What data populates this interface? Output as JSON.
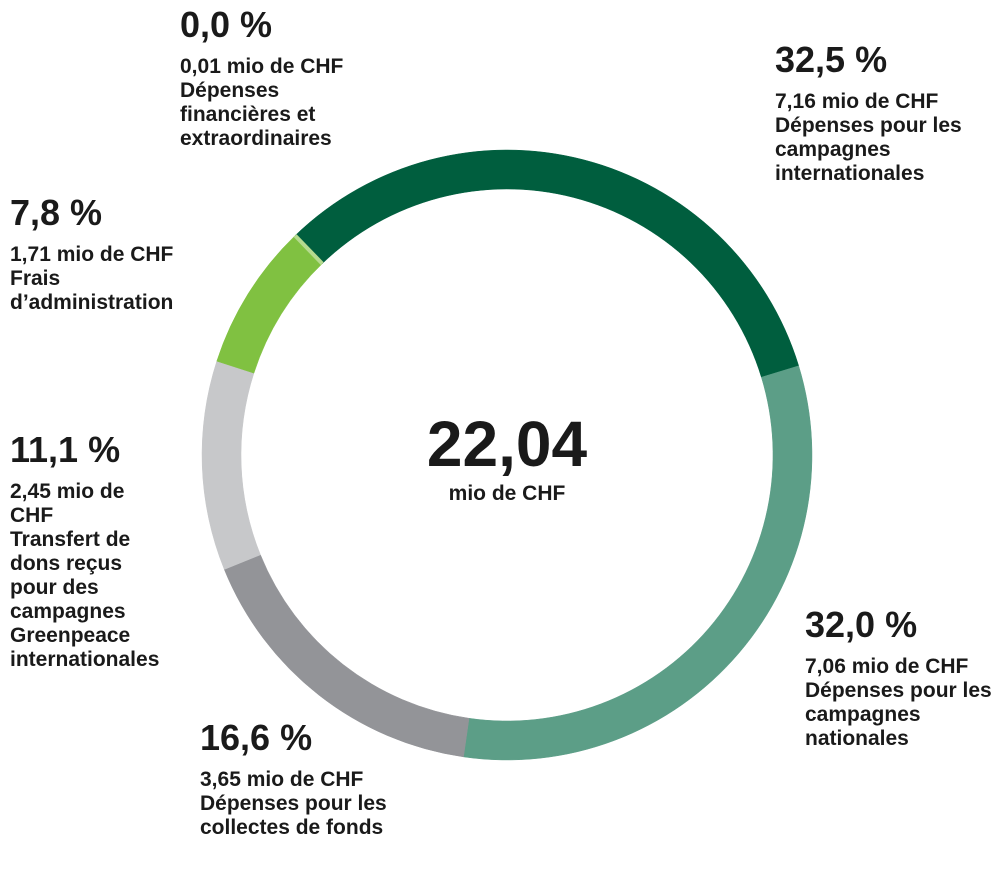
{
  "chart_data": {
    "type": "pie",
    "center_value": "22,04",
    "center_unit": "mio de CHF",
    "categories": [
      "Dépenses pour les campagnes internationales",
      "Dépenses pour les campagnes nationales",
      "Dépenses pour les collectes de fonds",
      "Transfert de dons reçus pour des campagnes Greenpeace internationales",
      "Frais d’administration",
      "Dépenses financières et extraordinaires"
    ],
    "values": [
      32.5,
      32.0,
      16.6,
      11.1,
      7.8,
      0.0
    ],
    "value_labels": [
      "32,5 %",
      "32,0 %",
      "16,6 %",
      "11,1 %",
      "7,8 %",
      "0,0 %"
    ],
    "amount_labels": [
      "7,16 mio de CHF",
      "7,06 mio de CHF",
      "3,65 mio de CHF",
      "2,45 mio de CHF",
      "1,71 mio de CHF",
      "0,01 mio de CHF"
    ],
    "colors": [
      "#005e3e",
      "#5c9e87",
      "#939498",
      "#c7c8ca",
      "#80c141",
      "#b5da8f"
    ]
  }
}
